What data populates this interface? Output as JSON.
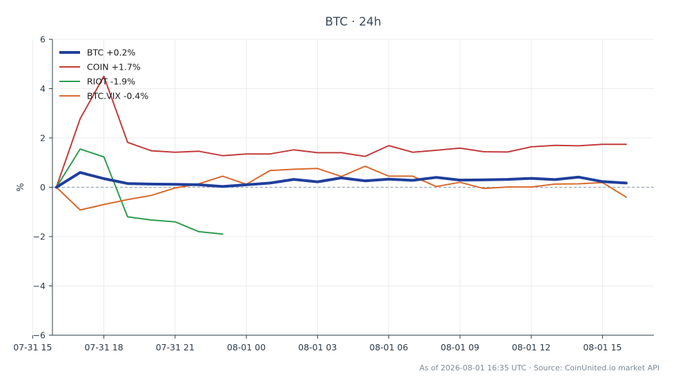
{
  "chart_data": {
    "type": "line",
    "title": "BTC · 24h",
    "ylabel": "%",
    "xlabel": "",
    "ylim": [
      -6,
      6
    ],
    "yticks": [
      -6,
      -4,
      -2,
      0,
      2,
      4,
      6
    ],
    "ytick_labels": [
      "−6",
      "−4",
      "−2",
      "0",
      "2",
      "4",
      "6"
    ],
    "x": [
      "07-31 16:00",
      "07-31 17:00",
      "07-31 18:00",
      "07-31 19:00",
      "07-31 20:00",
      "07-31 21:00",
      "07-31 22:00",
      "07-31 23:00",
      "08-01 00:00",
      "08-01 01:00",
      "08-01 02:00",
      "08-01 03:00",
      "08-01 04:00",
      "08-01 05:00",
      "08-01 06:00",
      "08-01 07:00",
      "08-01 08:00",
      "08-01 09:00",
      "08-01 10:00",
      "08-01 11:00",
      "08-01 12:00",
      "08-01 13:00",
      "08-01 14:00",
      "08-01 15:00",
      "08-01 16:00"
    ],
    "xticks": [
      "07-31 15",
      "07-31 18",
      "07-31 21",
      "08-01 00",
      "08-01 03",
      "08-01 06",
      "08-01 09",
      "08-01 12",
      "08-01 15"
    ],
    "xlim": [
      "07-31 15:50",
      "08-01 17:10"
    ],
    "grid": true,
    "zero_line": true,
    "legend_position": "top-left",
    "series": [
      {
        "name": "BTC +0.2%",
        "color": "#1f3f9c",
        "width": 4,
        "values": [
          0.0,
          0.6,
          0.35,
          0.15,
          0.13,
          0.12,
          0.1,
          0.03,
          0.1,
          0.17,
          0.32,
          0.22,
          0.38,
          0.26,
          0.33,
          0.28,
          0.4,
          0.29,
          0.3,
          0.32,
          0.36,
          0.31,
          0.41,
          0.23,
          0.17
        ]
      },
      {
        "name": "COIN +1.7%",
        "color": "#c23a3a",
        "width": 2,
        "values": [
          0.0,
          2.78,
          4.5,
          1.82,
          1.48,
          1.42,
          1.46,
          1.28,
          1.35,
          1.35,
          1.52,
          1.4,
          1.4,
          1.25,
          1.69,
          1.42,
          1.5,
          1.59,
          1.44,
          1.43,
          1.64,
          1.7,
          1.68,
          1.74,
          1.74
        ]
      },
      {
        "name": "RIOT -1.9%",
        "color": "#2a9d4f",
        "width": 2,
        "values": [
          0.0,
          1.55,
          1.23,
          -1.2,
          -1.33,
          -1.4,
          -1.8,
          -1.9,
          null,
          null,
          null,
          null,
          null,
          null,
          null,
          null,
          null,
          null,
          null,
          null,
          null,
          null,
          null,
          null,
          null
        ]
      },
      {
        "name": "BTC.VIX -0.4%",
        "color": "#d9682b",
        "width": 2,
        "values": [
          0.0,
          -0.92,
          -0.7,
          -0.5,
          -0.33,
          -0.03,
          0.14,
          0.45,
          0.12,
          0.68,
          0.73,
          0.76,
          0.44,
          0.85,
          0.45,
          0.45,
          0.03,
          0.2,
          -0.05,
          0.01,
          0.01,
          0.13,
          0.14,
          0.19,
          -0.4
        ]
      }
    ]
  },
  "footer": {
    "text": "As of 2026-08-01 16:35 UTC · Source: CoinUnited.io market API"
  }
}
